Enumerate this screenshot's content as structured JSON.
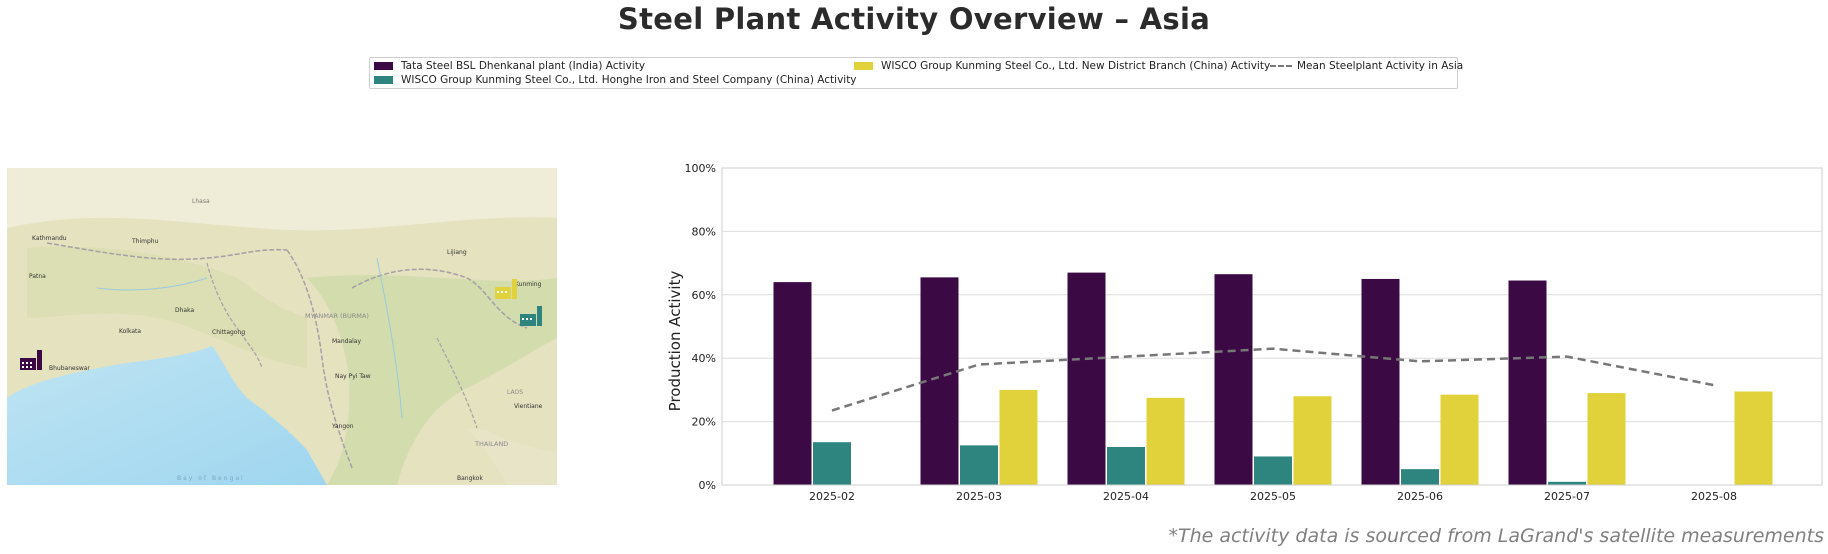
{
  "title": "Steel Plant Activity Overview – Asia",
  "footnote": "*The activity data is sourced from LaGrand's satellite measurements",
  "colors": {
    "tata": "#3b0a45",
    "honghe": "#2e8580",
    "newdistrict": "#e1d23b",
    "mean": "#777777",
    "grid": "#dddddd"
  },
  "legend": {
    "items": [
      {
        "label": "Tata Steel BSL Dhenkanal plant (India) Activity",
        "color": "#3b0a45",
        "kind": "bar"
      },
      {
        "label": "WISCO Group Kunming Steel Co., Ltd. Honghe Iron and Steel Company (China) Activity",
        "color": "#2e8580",
        "kind": "bar"
      },
      {
        "label": "WISCO Group Kunming Steel Co., Ltd. New District Branch (China) Activity",
        "color": "#e1d23b",
        "kind": "bar"
      },
      {
        "label": "Mean Steelplant Activity in Asia",
        "color": "#777777",
        "kind": "line"
      }
    ]
  },
  "map": {
    "labels": [
      {
        "text": "Kathmandu",
        "icon": "city"
      },
      {
        "text": "Thimphu",
        "icon": "city"
      },
      {
        "text": "Lhasa",
        "icon": "city"
      },
      {
        "text": "Lijiang",
        "icon": "city"
      },
      {
        "text": "Kunming",
        "icon": "city"
      },
      {
        "text": "Patna",
        "icon": "city"
      },
      {
        "text": "Dhaka",
        "icon": "city"
      },
      {
        "text": "Kolkata",
        "icon": "city"
      },
      {
        "text": "Chittagong",
        "icon": "city"
      },
      {
        "text": "MYANMAR (BURMA)",
        "icon": "country"
      },
      {
        "text": "Mandalay",
        "icon": "city"
      },
      {
        "text": "Nay Pyi Taw",
        "icon": "city"
      },
      {
        "text": "Yangon",
        "icon": "city"
      },
      {
        "text": "THAILAND",
        "icon": "country"
      },
      {
        "text": "LAOS",
        "icon": "country"
      },
      {
        "text": "Vientiane",
        "icon": "city"
      },
      {
        "text": "Bangkok",
        "icon": "city"
      },
      {
        "text": "Bhubaneswar",
        "icon": "city"
      },
      {
        "text": "Bay of Bengal",
        "icon": "water"
      }
    ]
  },
  "chart_data": {
    "type": "bar",
    "title": "Steel Plant Activity Overview – Asia",
    "xlabel": "",
    "ylabel": "Production Activity",
    "ylim": [
      0,
      100
    ],
    "yticks": [
      "0%",
      "20%",
      "40%",
      "60%",
      "80%",
      "100%"
    ],
    "ytick_values": [
      0,
      20,
      40,
      60,
      80,
      100
    ],
    "categories": [
      "2025-02",
      "2025-03",
      "2025-04",
      "2025-05",
      "2025-06",
      "2025-07",
      "2025-08"
    ],
    "series": [
      {
        "name": "Tata Steel BSL Dhenkanal plant (India) Activity",
        "values": [
          64,
          65.5,
          67,
          66.5,
          65,
          64.5,
          null
        ]
      },
      {
        "name": "WISCO Group Kunming Steel Co., Ltd. Honghe Iron and Steel Company (China) Activity",
        "values": [
          13.5,
          12.5,
          12,
          9,
          5,
          1,
          null
        ]
      },
      {
        "name": "WISCO Group Kunming Steel Co., Ltd. New District Branch (China) Activity",
        "values": [
          null,
          30,
          27.5,
          28,
          28.5,
          29,
          29.5
        ]
      }
    ],
    "mean_line": {
      "name": "Mean Steelplant Activity in Asia",
      "values": [
        23.5,
        38,
        40.5,
        43,
        39,
        40.5,
        31.5
      ]
    },
    "grid": true,
    "legend_position": "top-center"
  }
}
